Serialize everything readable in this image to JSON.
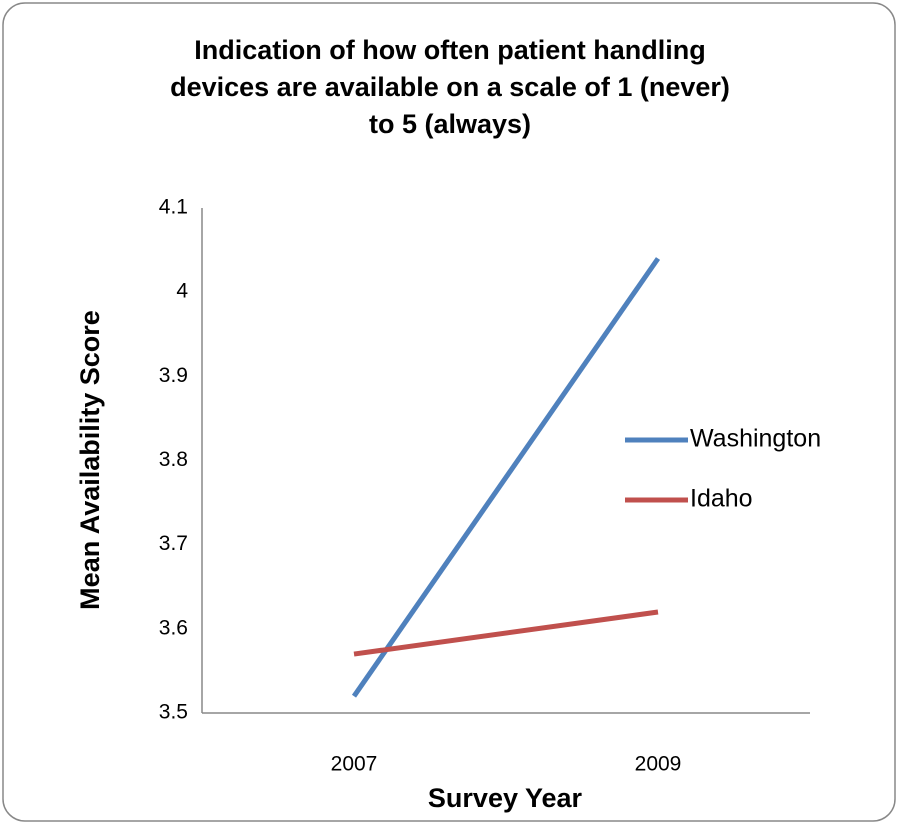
{
  "chart_data": {
    "type": "line",
    "title": "Indication of how often patient handling devices are available on a scale of 1 (never) to 5 (always)",
    "x_label": "Survey Year",
    "y_label": "Mean Availability Score",
    "categories": [
      "2007",
      "2009"
    ],
    "series": [
      {
        "name": "Washington",
        "color": "#4f81bd",
        "values": [
          3.52,
          4.04
        ]
      },
      {
        "name": "Idaho",
        "color": "#c0504d",
        "values": [
          3.57,
          3.62
        ]
      }
    ],
    "ylim": [
      3.5,
      4.1
    ],
    "yticks": [
      3.5,
      3.6,
      3.7,
      3.8,
      3.9,
      4,
      4.1
    ],
    "grid": false,
    "legend": "right"
  }
}
